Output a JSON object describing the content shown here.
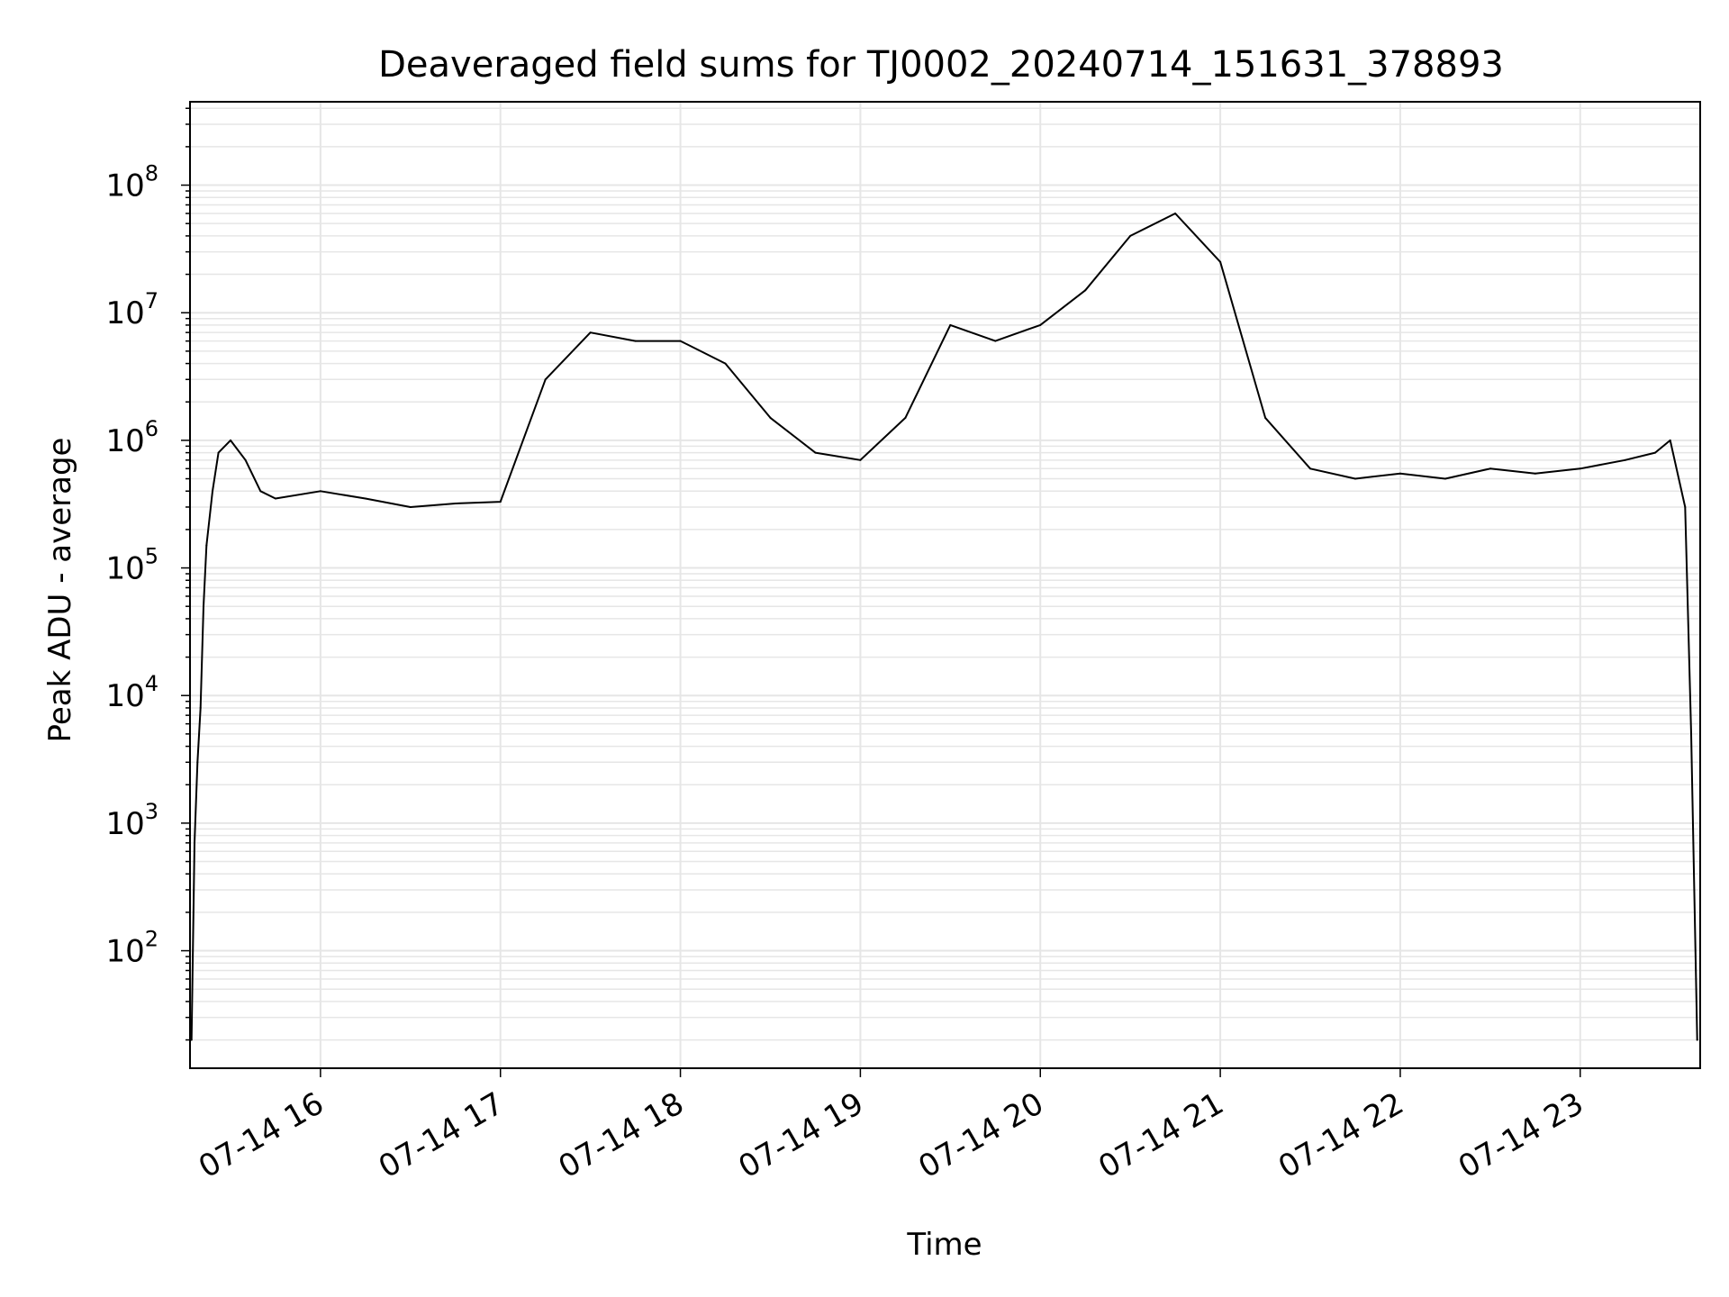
{
  "chart_data": {
    "type": "line",
    "title": "Deaveraged field sums for TJ0002_20240714_151631_378893",
    "xlabel": "Time",
    "ylabel": "Peak ADU - average",
    "yscale": "log",
    "ylim": [
      12,
      450000000
    ],
    "xlim": [
      "2024-07-14 15:16:30",
      "2024-07-14 23:40:00"
    ],
    "grid": true,
    "line_color": "#000000",
    "grid_color": "#e6e6e6",
    "x_ticks": [
      {
        "value": "2024-07-14 16:00",
        "label": "07-14 16"
      },
      {
        "value": "2024-07-14 17:00",
        "label": "07-14 17"
      },
      {
        "value": "2024-07-14 18:00",
        "label": "07-14 18"
      },
      {
        "value": "2024-07-14 19:00",
        "label": "07-14 19"
      },
      {
        "value": "2024-07-14 20:00",
        "label": "07-14 20"
      },
      {
        "value": "2024-07-14 21:00",
        "label": "07-14 21"
      },
      {
        "value": "2024-07-14 22:00",
        "label": "07-14 22"
      },
      {
        "value": "2024-07-14 23:00",
        "label": "07-14 23"
      }
    ],
    "y_ticks": [
      {
        "value": 100,
        "base": "10",
        "exp": "2"
      },
      {
        "value": 1000,
        "base": "10",
        "exp": "3"
      },
      {
        "value": 10000,
        "base": "10",
        "exp": "4"
      },
      {
        "value": 100000,
        "base": "10",
        "exp": "5"
      },
      {
        "value": 1000000,
        "base": "10",
        "exp": "6"
      },
      {
        "value": 10000000,
        "base": "10",
        "exp": "7"
      },
      {
        "value": 100000000,
        "base": "10",
        "exp": "8"
      }
    ],
    "series": [
      {
        "x": [
          "2024-07-14 15:17",
          "2024-07-14 15:18",
          "2024-07-14 15:19",
          "2024-07-14 15:20",
          "2024-07-14 15:21",
          "2024-07-14 15:22",
          "2024-07-14 15:24",
          "2024-07-14 15:26",
          "2024-07-14 15:30",
          "2024-07-14 15:35",
          "2024-07-14 15:40",
          "2024-07-14 15:45",
          "2024-07-14 16:00",
          "2024-07-14 16:15",
          "2024-07-14 16:30",
          "2024-07-14 16:45",
          "2024-07-14 17:00",
          "2024-07-14 17:15",
          "2024-07-14 17:30",
          "2024-07-14 17:45",
          "2024-07-14 18:00",
          "2024-07-14 18:15",
          "2024-07-14 18:30",
          "2024-07-14 18:45",
          "2024-07-14 19:00",
          "2024-07-14 19:15",
          "2024-07-14 19:30",
          "2024-07-14 19:45",
          "2024-07-14 20:00",
          "2024-07-14 20:15",
          "2024-07-14 20:30",
          "2024-07-14 20:45",
          "2024-07-14 21:00",
          "2024-07-14 21:15",
          "2024-07-14 21:30",
          "2024-07-14 21:45",
          "2024-07-14 22:00",
          "2024-07-14 22:15",
          "2024-07-14 22:30",
          "2024-07-14 22:45",
          "2024-07-14 23:00",
          "2024-07-14 23:15",
          "2024-07-14 23:25",
          "2024-07-14 23:30",
          "2024-07-14 23:35",
          "2024-07-14 23:37",
          "2024-07-14 23:39"
        ],
        "values": [
          20,
          700,
          3000,
          8000,
          50000,
          150000,
          400000,
          800000,
          1000000,
          700000,
          400000,
          350000,
          400000,
          350000,
          300000,
          320000,
          330000,
          3000000,
          7000000,
          6000000,
          6000000,
          4000000,
          1500000,
          800000,
          700000,
          1500000,
          8000000,
          6000000,
          8000000,
          15000000,
          40000000,
          60000000,
          25000000,
          1500000,
          600000,
          500000,
          550000,
          500000,
          600000,
          550000,
          600000,
          700000,
          800000,
          1000000,
          300000,
          5000,
          20
        ]
      }
    ]
  }
}
